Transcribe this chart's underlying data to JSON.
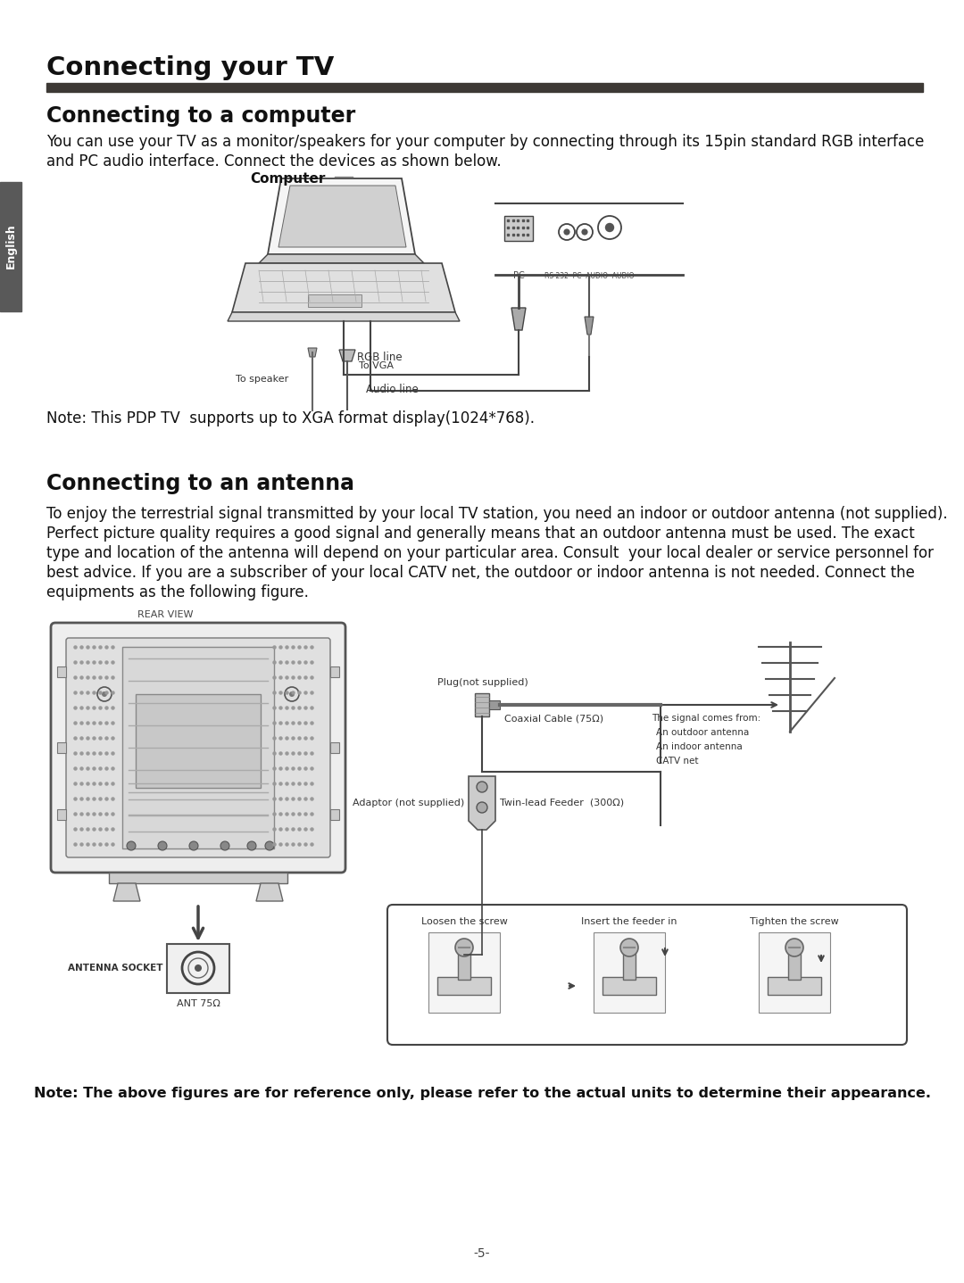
{
  "page_title": "Connecting your TV",
  "section1_title": "Connecting to a computer",
  "section1_body_line1": "You can use your TV as a monitor/speakers for your computer by connecting through its 15pin standard RGB interface",
  "section1_body_line2": "and PC audio interface. Connect the devices as shown below.",
  "section1_note": "Note: This PDP TV  supports up to XGA format display(1024*768).",
  "section2_title": "Connecting to an antenna",
  "section2_body": "To enjoy the terrestrial signal transmitted by your local TV station, you need an indoor or outdoor antenna (not supplied).\nPerfect picture quality requires a good signal and generally means that an outdoor antenna must be used. The exact\ntype and location of the antenna will depend on your particular area. Consult  your local dealer or service personnel for\nbest advice. If you are a subscriber of your local CATV net, the outdoor or indoor antenna is not needed. Connect the\nequipments as the following figure.",
  "bottom_note": "Note: The above figures are for reference only, please refer to the actual units to determine their appearance.",
  "page_number": "-5-",
  "english_tab_text": "English",
  "bg_color": "#ffffff",
  "title_bar_color": "#3d3935",
  "english_tab_color": "#595959"
}
